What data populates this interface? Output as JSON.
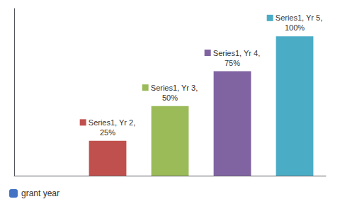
{
  "chart_data": {
    "type": "bar",
    "categories": [
      null,
      null,
      null,
      null,
      null
    ],
    "series": [
      {
        "name": "grant year",
        "color": "#4472c4",
        "colors": [
          "#4bacc6",
          "#c0504d",
          "#9bbb59",
          "#8064a2",
          "#4bacc6"
        ],
        "values": [
          0,
          25,
          50,
          75,
          100
        ],
        "value_labels": [
          null,
          "Series1, Yr 2,\n25%",
          "Series1, Yr 3,\n50%",
          "Series1, Yr 4,\n75%",
          "Series1, Yr 5,\n100%"
        ]
      }
    ],
    "ylim": [
      0,
      120
    ],
    "grid": false,
    "legend": "lower left",
    "tick_labels": false,
    "data_labels": true
  }
}
